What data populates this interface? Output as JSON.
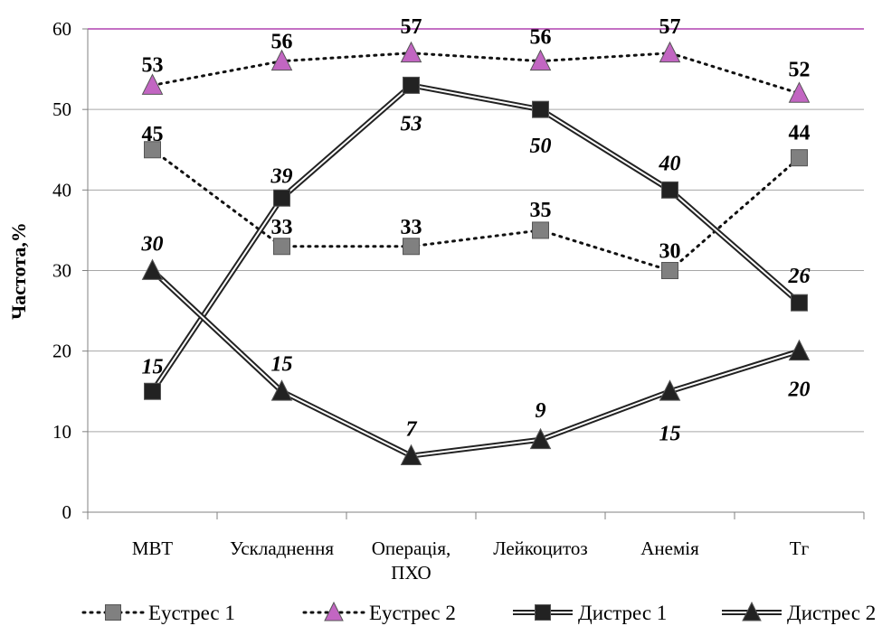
{
  "chart_data": {
    "type": "line",
    "ylabel": "Частота,%",
    "ylim": [
      0,
      60
    ],
    "yticks": [
      0,
      10,
      20,
      30,
      40,
      50,
      60
    ],
    "grid": true,
    "legend_position": "bottom",
    "categories": [
      {
        "lines": [
          "МВТ"
        ]
      },
      {
        "lines": [
          "Ускладнення"
        ]
      },
      {
        "lines": [
          "Операція,",
          "ПХО"
        ]
      },
      {
        "lines": [
          "Лейкоцитоз"
        ]
      },
      {
        "lines": [
          "Анемія"
        ]
      },
      {
        "lines": [
          "Тг"
        ]
      }
    ],
    "series": [
      {
        "name": "Еустрес 1",
        "values": [
          45,
          33,
          33,
          35,
          30,
          44
        ],
        "line": "dotted",
        "marker": "square",
        "color": "#808080",
        "label_style": "bold"
      },
      {
        "name": "Еустрес 2",
        "values": [
          53,
          56,
          57,
          56,
          57,
          52
        ],
        "line": "dotted",
        "marker": "triangle",
        "color": "#c266c2",
        "label_style": "bold"
      },
      {
        "name": "Дистрес 1",
        "values": [
          15,
          39,
          53,
          50,
          40,
          26
        ],
        "line": "double",
        "marker": "square",
        "color": "#222222",
        "label_style": "italic"
      },
      {
        "name": "Дистрес 2",
        "values": [
          30,
          15,
          7,
          9,
          15,
          20
        ],
        "line": "double",
        "marker": "triangle",
        "color": "#222222",
        "label_style": "italic"
      }
    ],
    "topline_color": "#b040b0"
  }
}
